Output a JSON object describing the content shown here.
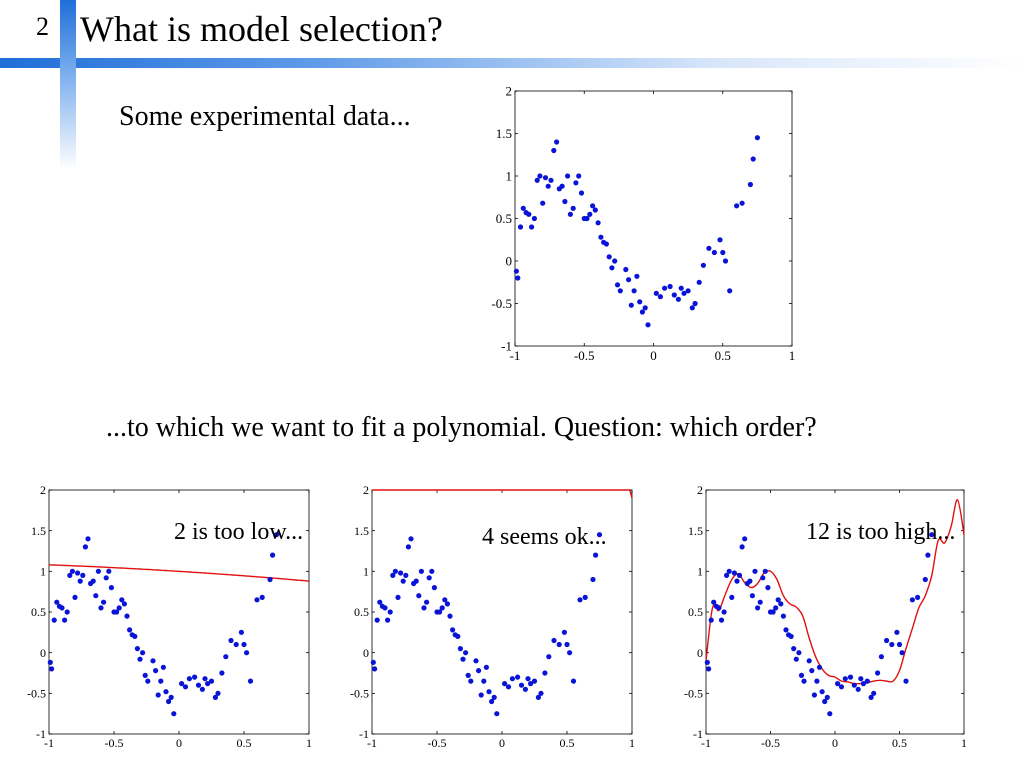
{
  "slide": {
    "number": "2",
    "title": "What is model selection?",
    "subtitle": "Some experimental data...",
    "question": "...to which we want to fit a polynomial. Question: which order?",
    "colors": {
      "accent_bar": "#1f6fd8",
      "accent_light": "#bcd5f5",
      "data_points": "#0a14d6",
      "fit_curve": "#e01010"
    }
  },
  "chart_data": [
    {
      "id": "data-chart",
      "type": "scatter",
      "title": "",
      "xlabel": "",
      "ylabel": "",
      "xlim": [
        -1,
        1
      ],
      "ylim": [
        -1,
        2
      ],
      "xticks": [
        "-1",
        "-0.5",
        "0",
        "0.5",
        "1"
      ],
      "yticks": [
        "-1",
        "-0.5",
        "0",
        "0.5",
        "1",
        "1.5",
        "2"
      ],
      "grid": false,
      "annotation": "",
      "series": [
        {
          "points": "shared"
        }
      ]
    },
    {
      "id": "fit-order-2",
      "type": "line",
      "title": "",
      "xlabel": "",
      "ylabel": "",
      "xlim": [
        -1,
        1
      ],
      "ylim": [
        -1,
        2
      ],
      "xticks": [
        "-1",
        "-0.5",
        "0",
        "0.5",
        "1"
      ],
      "yticks": [
        "-1",
        "-0.5",
        "0",
        "0.5",
        "1",
        "1.5",
        "2"
      ],
      "grid": false,
      "annotation": "2 is too low...",
      "fit_order": 2,
      "fit_coefficients": [
        -0.02,
        -0.1,
        1.0
      ]
    },
    {
      "id": "fit-order-4",
      "type": "line",
      "title": "",
      "xlabel": "",
      "ylabel": "",
      "xlim": [
        -1,
        1
      ],
      "ylim": [
        -1,
        2
      ],
      "xticks": [
        "-1",
        "-0.5",
        "0",
        "0.5",
        "1"
      ],
      "yticks": [
        "-1",
        "-0.5",
        "0",
        "0.5",
        "1",
        "1.5",
        "2"
      ],
      "grid": false,
      "annotation": "4 seems ok...",
      "fit_order": 4,
      "fit_coefficients": [
        0.0,
        -2.0,
        -1.2,
        1.7,
        3.4
      ]
    },
    {
      "id": "fit-order-12",
      "type": "line",
      "title": "",
      "xlabel": "",
      "ylabel": "",
      "xlim": [
        -1,
        1
      ],
      "ylim": [
        -1,
        2
      ],
      "xticks": [
        "-1",
        "-0.5",
        "0",
        "0.5",
        "1"
      ],
      "yticks": [
        "-1",
        "-0.5",
        "0",
        "0.5",
        "1",
        "1.5",
        "2"
      ],
      "grid": false,
      "annotation": "12 is too high...",
      "fit_order": 12,
      "fit_sample_x": [
        -1,
        -0.95,
        -0.9,
        -0.85,
        -0.8,
        -0.75,
        -0.7,
        -0.65,
        -0.6,
        -0.55,
        -0.5,
        -0.45,
        -0.4,
        -0.35,
        -0.3,
        -0.25,
        -0.2,
        -0.15,
        -0.1,
        -0.05,
        0,
        0.05,
        0.1,
        0.15,
        0.2,
        0.25,
        0.3,
        0.35,
        0.4,
        0.45,
        0.5,
        0.55,
        0.6,
        0.65,
        0.7,
        0.75,
        0.8,
        0.85,
        0.9,
        0.95,
        1
      ],
      "fit_sample_y": [
        -0.1,
        0.55,
        0.52,
        0.72,
        0.9,
        0.97,
        0.86,
        0.8,
        0.85,
        0.98,
        1.0,
        0.9,
        0.7,
        0.6,
        0.56,
        0.45,
        0.18,
        -0.05,
        -0.2,
        -0.28,
        -0.3,
        -0.35,
        -0.36,
        -0.38,
        -0.38,
        -0.37,
        -0.35,
        -0.34,
        -0.35,
        -0.35,
        -0.22,
        0.05,
        0.3,
        0.55,
        0.7,
        0.95,
        1.38,
        1.35,
        1.55,
        1.88,
        1.45
      ]
    }
  ],
  "shared_points": {
    "x": [
      -0.99,
      -0.98,
      -0.96,
      -0.94,
      -0.92,
      -0.9,
      -0.88,
      -0.86,
      -0.84,
      -0.82,
      -0.8,
      -0.78,
      -0.76,
      -0.74,
      -0.72,
      -0.7,
      -0.68,
      -0.66,
      -0.64,
      -0.62,
      -0.6,
      -0.58,
      -0.56,
      -0.54,
      -0.52,
      -0.5,
      -0.48,
      -0.46,
      -0.44,
      -0.42,
      -0.4,
      -0.38,
      -0.36,
      -0.34,
      -0.32,
      -0.3,
      -0.28,
      -0.26,
      -0.24,
      -0.2,
      -0.18,
      -0.16,
      -0.14,
      -0.12,
      -0.1,
      -0.08,
      -0.06,
      -0.04,
      0.02,
      0.05,
      0.08,
      0.12,
      0.15,
      0.18,
      0.2,
      0.22,
      0.25,
      0.28,
      0.3,
      0.33,
      0.36,
      0.4,
      0.44,
      0.48,
      0.5,
      0.52,
      0.55,
      0.6,
      0.64,
      0.7,
      0.72,
      0.75
    ],
    "y": [
      -0.12,
      -0.2,
      0.4,
      0.62,
      0.57,
      0.55,
      0.4,
      0.5,
      0.95,
      1.0,
      0.68,
      0.98,
      0.88,
      0.95,
      1.3,
      1.4,
      0.85,
      0.88,
      0.7,
      1.0,
      0.55,
      0.62,
      0.92,
      1.0,
      0.8,
      0.5,
      0.5,
      0.55,
      0.65,
      0.6,
      0.45,
      0.28,
      0.22,
      0.2,
      0.05,
      -0.08,
      0.0,
      -0.28,
      -0.35,
      -0.1,
      -0.22,
      -0.52,
      -0.35,
      -0.18,
      -0.48,
      -0.6,
      -0.55,
      -0.75,
      -0.38,
      -0.42,
      -0.32,
      -0.3,
      -0.4,
      -0.45,
      -0.32,
      -0.38,
      -0.35,
      -0.55,
      -0.5,
      -0.25,
      -0.05,
      0.15,
      0.1,
      0.25,
      0.1,
      0.0,
      -0.35,
      0.65,
      0.68,
      0.9,
      1.2,
      1.45
    ]
  }
}
